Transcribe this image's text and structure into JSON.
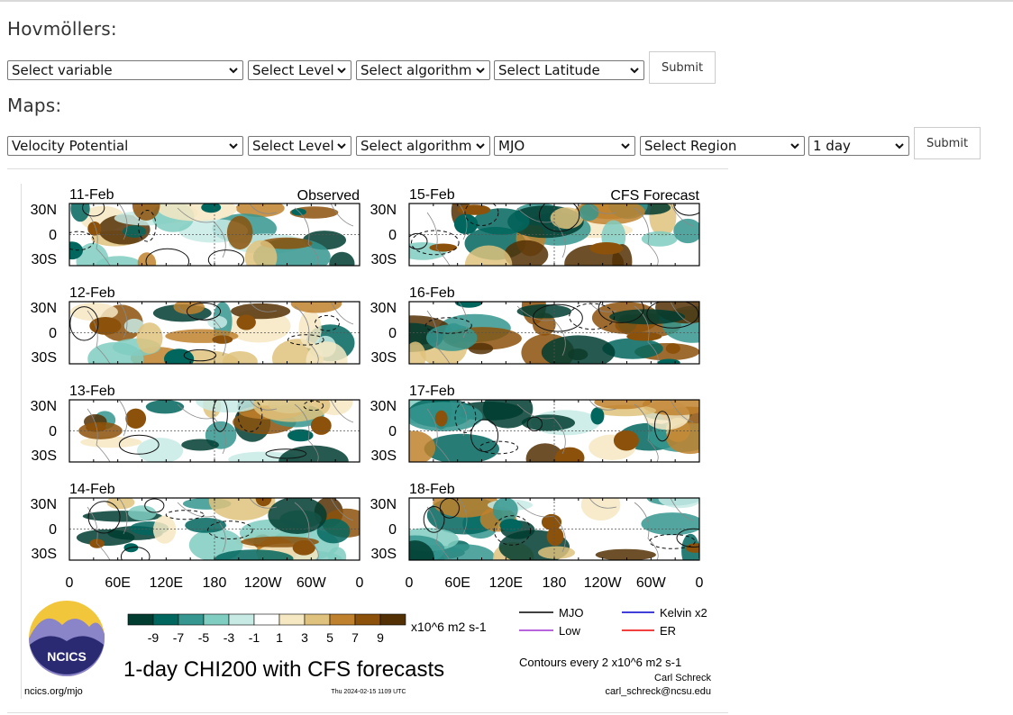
{
  "hovmollers": {
    "heading": "Hovmöllers:",
    "selects": [
      {
        "value": "Select variable"
      },
      {
        "value": "Select Level"
      },
      {
        "value": "Select algorithm"
      },
      {
        "value": "Select Latitude"
      }
    ],
    "submit_label": "Submit"
  },
  "maps": {
    "heading": "Maps:",
    "selects": [
      {
        "value": "Velocity Potential"
      },
      {
        "value": "Select Level"
      },
      {
        "value": "Select algorithm"
      },
      {
        "value": "MJO"
      },
      {
        "value": "Select Region"
      },
      {
        "value": "1 day"
      }
    ],
    "submit_label": "Submit"
  },
  "figure": {
    "title": "1-day CHI200 with CFS forecasts",
    "left_column_label": "Observed",
    "right_column_label": "CFS Forecast",
    "left_dates": [
      "11-Feb",
      "12-Feb",
      "13-Feb",
      "14-Feb"
    ],
    "right_dates": [
      "15-Feb",
      "16-Feb",
      "17-Feb",
      "18-Feb"
    ],
    "lat_labels": [
      "30N",
      "0",
      "30S"
    ],
    "lon_labels": [
      "0",
      "60E",
      "120E",
      "180",
      "120W",
      "60W",
      "0"
    ],
    "colorbar": {
      "ticks": [
        "-9",
        "-7",
        "-5",
        "-3",
        "-1",
        "1",
        "3",
        "5",
        "7",
        "9"
      ],
      "units": "x10^6 m2 s-1",
      "colors": [
        "#003c30",
        "#01665e",
        "#35978f",
        "#80cdc1",
        "#c7eae5",
        "#ffffff",
        "#f6e8c3",
        "#dfc27d",
        "#bf812d",
        "#8c510a",
        "#543005"
      ]
    },
    "legend": [
      {
        "label": "MJO",
        "color": "#000000"
      },
      {
        "label": "Kelvin x2",
        "color": "#0000cc"
      },
      {
        "label": "Low",
        "color": "#a030d0"
      },
      {
        "label": "ER",
        "color": "#ee0000"
      }
    ],
    "contour_note": "Contours every 2 x10^6 m2 s-1",
    "author": "Carl Schreck",
    "email": "carl_schreck@ncsu.edu",
    "site": "ncics.org/mjo",
    "timestamp": "Thu 2024-02-15 1109 UTC",
    "logo_text": "NCICS"
  }
}
